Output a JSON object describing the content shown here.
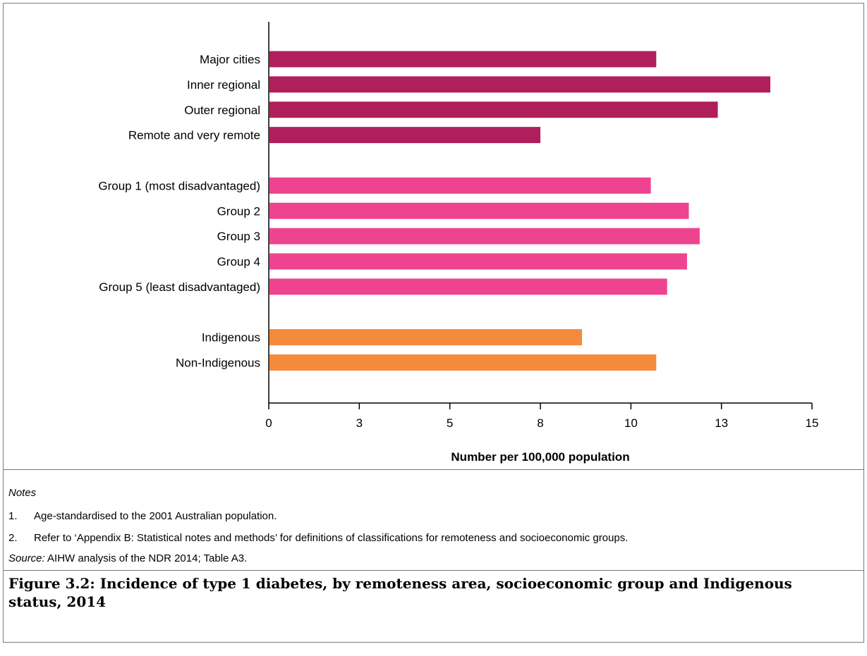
{
  "chart_data": {
    "type": "bar",
    "orientation": "horizontal",
    "title": "",
    "xlabel": "Number per 100,000 population",
    "ylabel": "",
    "xlim": [
      0,
      15
    ],
    "x_ticks": [
      0,
      2.5,
      5,
      7.5,
      10,
      12.5,
      15
    ],
    "x_tick_labels": [
      "0",
      "3",
      "5",
      "8",
      "10",
      "13",
      "15"
    ],
    "grid": false,
    "groups": [
      {
        "color": "#b01f5b",
        "categories": [
          "Major cities",
          "Inner regional",
          "Outer regional",
          "Remote and very remote"
        ],
        "values": [
          10.7,
          13.85,
          12.4,
          7.5
        ]
      },
      {
        "color": "#ee4490",
        "categories": [
          "Group 1 (most disadvantaged)",
          "Group 2",
          "Group 3",
          "Group 4",
          "Group 5 (least disadvantaged)"
        ],
        "values": [
          10.55,
          11.6,
          11.9,
          11.55,
          11.0
        ]
      },
      {
        "color": "#f58a3d",
        "categories": [
          "Indigenous",
          "Non-Indigenous"
        ],
        "values": [
          8.65,
          10.7
        ]
      }
    ]
  },
  "notes": {
    "heading": "Notes",
    "items": [
      {
        "num": "1.",
        "text": "Age-standardised to the 2001 Australian population."
      },
      {
        "num": "2.",
        "text": "Refer to ‘Appendix B: Statistical notes and methods’ for definitions of classifications for remoteness and socioeconomic groups."
      }
    ],
    "source_label": "Source:",
    "source_text": " AIHW analysis of the NDR 2014; Table A3."
  },
  "caption": "Figure 3.2: Incidence of type 1 diabetes, by remoteness area, socioeconomic group and Indigenous status, 2014"
}
